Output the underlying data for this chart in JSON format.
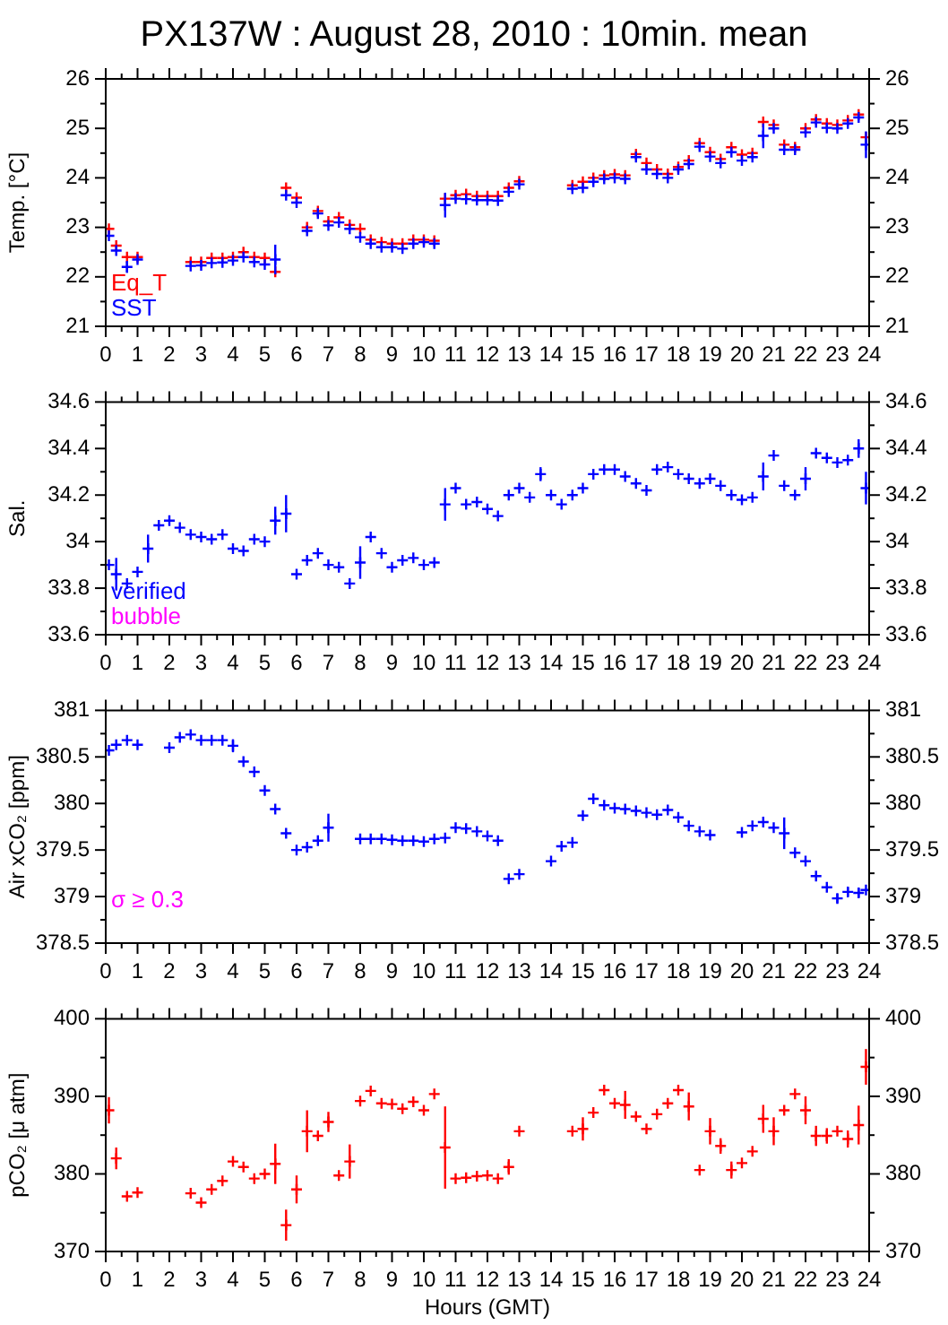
{
  "chart_data": [
    {
      "type": "scatter",
      "title": "PX137W : August 28, 2010 : 10min. mean",
      "ylabel": "Temp. [°C]",
      "marker": "cross",
      "legend": "bottom left",
      "x": [
        0.1,
        0.33,
        0.67,
        1,
        1.33,
        1.67,
        2,
        2.33,
        2.67,
        3,
        3.33,
        3.67,
        4,
        4.33,
        4.67,
        5,
        5.33,
        5.67,
        6,
        6.33,
        6.67,
        7,
        7.33,
        7.67,
        8,
        8.33,
        8.67,
        9,
        9.33,
        9.67,
        10,
        10.33,
        10.67,
        11,
        11.33,
        11.67,
        12,
        12.33,
        12.67,
        13,
        13.33,
        13.67,
        14,
        14.33,
        14.67,
        15,
        15.33,
        15.67,
        16,
        16.33,
        16.67,
        17,
        17.33,
        17.67,
        18,
        18.33,
        18.67,
        19,
        19.33,
        19.67,
        20,
        20.33,
        20.67,
        21,
        21.33,
        21.67,
        22,
        22.33,
        22.67,
        23,
        23.33,
        23.67,
        23.9
      ],
      "series": [
        {
          "name": "Eq_T",
          "color": "#ff0000",
          "values": [
            22.97,
            22.63,
            22.4,
            22.4,
            null,
            null,
            null,
            null,
            22.3,
            22.3,
            22.38,
            22.38,
            22.4,
            22.5,
            22.4,
            22.38,
            22.1,
            23.8,
            23.6,
            23.0,
            23.33,
            23.12,
            23.2,
            23.05,
            22.97,
            22.75,
            22.7,
            22.67,
            22.67,
            22.75,
            22.75,
            22.73,
            23.58,
            23.65,
            23.67,
            23.63,
            23.63,
            23.63,
            23.8,
            23.93,
            null,
            null,
            null,
            null,
            23.85,
            23.92,
            24.0,
            24.05,
            24.07,
            24.05,
            24.48,
            24.3,
            24.17,
            24.08,
            24.22,
            24.35,
            24.7,
            24.52,
            24.38,
            24.62,
            24.47,
            24.5,
            25.13,
            25.07,
            24.67,
            24.62,
            25.0,
            25.18,
            25.1,
            25.07,
            25.16,
            25.28,
            24.82
          ]
        },
        {
          "name": "SST",
          "color": "#0000ff",
          "values": [
            22.83,
            22.53,
            22.2,
            22.35,
            null,
            null,
            null,
            null,
            22.22,
            22.23,
            22.28,
            22.29,
            22.33,
            22.4,
            22.3,
            22.25,
            22.35,
            23.65,
            23.5,
            22.93,
            23.28,
            23.04,
            23.1,
            22.97,
            22.8,
            22.67,
            22.6,
            22.6,
            22.57,
            22.67,
            22.7,
            22.67,
            23.45,
            23.58,
            23.57,
            23.55,
            23.55,
            23.54,
            23.72,
            23.87,
            null,
            null,
            null,
            null,
            23.78,
            23.8,
            23.92,
            23.98,
            24.0,
            23.98,
            24.42,
            24.17,
            24.08,
            24.0,
            24.17,
            24.28,
            24.63,
            24.43,
            24.3,
            24.52,
            24.35,
            24.42,
            24.85,
            25.0,
            24.57,
            24.57,
            24.92,
            25.12,
            25.01,
            25.0,
            25.1,
            25.22,
            24.67
          ],
          "errors": [
            null,
            null,
            0.12,
            null,
            null,
            null,
            null,
            null,
            null,
            null,
            null,
            null,
            null,
            null,
            null,
            null,
            0.3,
            null,
            null,
            null,
            null,
            null,
            null,
            null,
            null,
            null,
            null,
            null,
            null,
            null,
            null,
            null,
            0.25,
            null,
            null,
            null,
            null,
            null,
            null,
            null,
            null,
            null,
            null,
            null,
            null,
            null,
            null,
            null,
            null,
            null,
            null,
            null,
            null,
            null,
            null,
            null,
            null,
            null,
            null,
            null,
            null,
            null,
            0.25,
            null,
            null,
            null,
            null,
            null,
            null,
            null,
            null,
            null,
            0.27
          ]
        }
      ],
      "xlim": [
        0,
        24
      ],
      "xticks": [
        0,
        {
          "value": 0.5,
          "label": null
        },
        1,
        {
          "value": 1.5,
          "label": null
        },
        2,
        {
          "value": 2.5,
          "label": null
        },
        3,
        {
          "value": 3.5,
          "label": null
        },
        4,
        {
          "value": 4.5,
          "label": null
        },
        5,
        {
          "value": 5.5,
          "label": null
        },
        6,
        {
          "value": 6.5,
          "label": null
        },
        7,
        {
          "value": 7.5,
          "label": null
        },
        8,
        {
          "value": 8.5,
          "label": null
        },
        9,
        {
          "value": 9.5,
          "label": null
        },
        10,
        {
          "value": 10.5,
          "label": null
        },
        11,
        {
          "value": 11.5,
          "label": null
        },
        12,
        {
          "value": 12.5,
          "label": null
        },
        13,
        {
          "value": 13.5,
          "label": null
        },
        14,
        {
          "value": 14.5,
          "label": null
        },
        15,
        {
          "value": 15.5,
          "label": null
        },
        16,
        {
          "value": 16.5,
          "label": null
        },
        17,
        {
          "value": 17.5,
          "label": null
        },
        18,
        {
          "value": 18.5,
          "label": null
        },
        19,
        {
          "value": 19.5,
          "label": null
        },
        20,
        {
          "value": 20.5,
          "label": null
        },
        21,
        {
          "value": 21.5,
          "label": null
        },
        22,
        {
          "value": 22.5,
          "label": null
        },
        23,
        {
          "value": 23.5,
          "label": null
        },
        24
      ],
      "ylim": [
        21,
        26
      ],
      "yticks": [
        21,
        {
          "value": 21.5,
          "label": null
        },
        22,
        {
          "value": 22.5,
          "label": null
        },
        23,
        {
          "value": 23.5,
          "label": null
        },
        24,
        {
          "value": 24.5,
          "label": null
        },
        25,
        {
          "value": 25.5,
          "label": null
        },
        26
      ],
      "y2lim": [
        21,
        26
      ],
      "y2ticks": [
        21,
        {
          "value": 21.5,
          "label": null
        },
        22,
        {
          "value": 22.5,
          "label": null
        },
        23,
        {
          "value": 23.5,
          "label": null
        },
        24,
        {
          "value": 24.5,
          "label": null
        },
        25,
        {
          "value": 25.5,
          "label": null
        },
        26
      ]
    },
    {
      "type": "scatter",
      "ylabel": "Sal.",
      "marker": "cross",
      "legend": "bottom left",
      "x": [
        0.1,
        0.33,
        0.67,
        1,
        1.33,
        1.67,
        2,
        2.33,
        2.67,
        3,
        3.33,
        3.67,
        4,
        4.33,
        4.67,
        5,
        5.33,
        5.67,
        6,
        6.33,
        6.67,
        7,
        7.33,
        7.67,
        8,
        8.33,
        8.67,
        9,
        9.33,
        9.67,
        10,
        10.33,
        10.67,
        11,
        11.33,
        11.67,
        12,
        12.33,
        12.67,
        13,
        13.33,
        13.67,
        14,
        14.33,
        14.67,
        15,
        15.33,
        15.67,
        16,
        16.33,
        16.67,
        17,
        17.33,
        17.67,
        18,
        18.33,
        18.67,
        19,
        19.33,
        19.67,
        20,
        20.33,
        20.67,
        21,
        21.33,
        21.67,
        22,
        22.33,
        22.67,
        23,
        23.33,
        23.67,
        23.9
      ],
      "series": [
        {
          "name": "verified",
          "color": "#0000ff",
          "values": [
            33.9,
            33.86,
            33.82,
            33.87,
            33.97,
            34.07,
            34.09,
            34.06,
            34.03,
            34.02,
            34.01,
            34.03,
            33.97,
            33.96,
            34.01,
            34.0,
            34.09,
            34.12,
            33.86,
            33.92,
            33.95,
            33.9,
            33.89,
            33.82,
            33.91,
            34.02,
            33.95,
            33.89,
            33.92,
            33.93,
            33.9,
            33.91,
            34.16,
            34.23,
            34.16,
            34.17,
            34.14,
            34.11,
            34.2,
            34.23,
            34.19,
            34.29,
            34.2,
            34.16,
            34.2,
            34.23,
            34.29,
            34.31,
            34.31,
            34.28,
            34.25,
            34.22,
            34.31,
            34.32,
            34.29,
            34.27,
            34.25,
            34.27,
            34.24,
            34.2,
            34.18,
            34.19,
            34.28,
            34.37,
            34.24,
            34.2,
            34.27,
            34.38,
            34.36,
            34.34,
            34.35,
            34.4,
            34.23
          ],
          "errors": [
            null,
            0.07,
            null,
            null,
            0.06,
            null,
            null,
            null,
            null,
            null,
            null,
            null,
            null,
            null,
            null,
            null,
            0.06,
            0.08,
            null,
            null,
            null,
            null,
            null,
            null,
            0.07,
            null,
            null,
            null,
            null,
            null,
            null,
            null,
            0.07,
            null,
            null,
            null,
            null,
            null,
            null,
            null,
            null,
            0.03,
            null,
            null,
            null,
            null,
            null,
            null,
            null,
            null,
            null,
            null,
            null,
            null,
            null,
            null,
            null,
            null,
            null,
            null,
            null,
            null,
            0.06,
            null,
            null,
            null,
            0.05,
            null,
            null,
            null,
            null,
            0.04,
            0.07
          ]
        },
        {
          "name": "bubble",
          "color": "#ff00ff",
          "values": [
            null,
            null,
            null,
            null,
            null,
            null,
            null,
            null,
            null,
            null,
            null,
            null,
            null,
            null,
            null,
            null,
            null,
            null,
            null,
            null,
            null,
            null,
            null,
            null,
            null,
            null,
            null,
            null,
            null,
            null,
            null,
            null,
            null,
            null,
            null,
            null,
            null,
            null,
            null,
            null,
            null,
            null,
            null,
            null,
            null,
            null,
            null,
            null,
            null,
            null,
            null,
            null,
            null,
            null,
            null,
            null,
            null,
            null,
            null,
            null,
            null,
            null,
            null,
            null,
            null,
            null,
            null,
            null,
            null,
            null,
            null,
            null,
            null
          ]
        }
      ],
      "xlim": [
        0,
        24
      ],
      "xticks": [
        0,
        {
          "value": 0.5,
          "label": null
        },
        1,
        {
          "value": 1.5,
          "label": null
        },
        2,
        {
          "value": 2.5,
          "label": null
        },
        3,
        {
          "value": 3.5,
          "label": null
        },
        4,
        {
          "value": 4.5,
          "label": null
        },
        5,
        {
          "value": 5.5,
          "label": null
        },
        6,
        {
          "value": 6.5,
          "label": null
        },
        7,
        {
          "value": 7.5,
          "label": null
        },
        8,
        {
          "value": 8.5,
          "label": null
        },
        9,
        {
          "value": 9.5,
          "label": null
        },
        10,
        {
          "value": 10.5,
          "label": null
        },
        11,
        {
          "value": 11.5,
          "label": null
        },
        12,
        {
          "value": 12.5,
          "label": null
        },
        13,
        {
          "value": 13.5,
          "label": null
        },
        14,
        {
          "value": 14.5,
          "label": null
        },
        15,
        {
          "value": 15.5,
          "label": null
        },
        16,
        {
          "value": 16.5,
          "label": null
        },
        17,
        {
          "value": 17.5,
          "label": null
        },
        18,
        {
          "value": 18.5,
          "label": null
        },
        19,
        {
          "value": 19.5,
          "label": null
        },
        20,
        {
          "value": 20.5,
          "label": null
        },
        21,
        {
          "value": 21.5,
          "label": null
        },
        22,
        {
          "value": 22.5,
          "label": null
        },
        23,
        {
          "value": 23.5,
          "label": null
        },
        24
      ],
      "ylim": [
        33.6,
        34.6
      ],
      "yticks": [
        33.6,
        {
          "value": 33.7,
          "label": null
        },
        33.8,
        {
          "value": 33.9,
          "label": null
        },
        34,
        {
          "value": 34.1,
          "label": null
        },
        34.2,
        {
          "value": 34.3,
          "label": null
        },
        34.4,
        {
          "value": 34.5,
          "label": null
        },
        34.6
      ],
      "y2lim": [
        33.6,
        34.6
      ],
      "y2ticks": [
        33.6,
        {
          "value": 33.7,
          "label": null
        },
        33.8,
        {
          "value": 33.9,
          "label": null
        },
        34,
        {
          "value": 34.1,
          "label": null
        },
        34.2,
        {
          "value": 34.3,
          "label": null
        },
        34.4,
        {
          "value": 34.5,
          "label": null
        },
        34.6
      ]
    },
    {
      "type": "scatter",
      "ylabel": "Air xCO₂ [ppm]",
      "marker": "cross",
      "annotations": [
        "σ ≥ 0.3"
      ],
      "x": [
        0.1,
        0.33,
        0.67,
        1,
        1.33,
        1.67,
        2,
        2.33,
        2.67,
        3,
        3.33,
        3.67,
        4,
        4.33,
        4.67,
        5,
        5.33,
        5.67,
        6,
        6.33,
        6.67,
        7,
        7.33,
        7.67,
        8,
        8.33,
        8.67,
        9,
        9.33,
        9.67,
        10,
        10.33,
        10.67,
        11,
        11.33,
        11.67,
        12,
        12.33,
        12.67,
        13,
        13.33,
        13.67,
        14,
        14.33,
        14.67,
        15,
        15.33,
        15.67,
        16,
        16.33,
        16.67,
        17,
        17.33,
        17.67,
        18,
        18.33,
        18.67,
        19,
        19.33,
        19.67,
        20,
        20.33,
        20.67,
        21,
        21.33,
        21.67,
        22,
        22.33,
        22.67,
        23,
        23.33,
        23.67,
        23.9
      ],
      "series": [
        {
          "color": "#0000ff",
          "values": [
            380.57,
            380.63,
            380.68,
            380.63,
            null,
            null,
            380.6,
            380.71,
            380.74,
            380.68,
            380.68,
            380.68,
            380.62,
            380.45,
            380.34,
            380.14,
            379.94,
            379.68,
            379.5,
            379.53,
            379.6,
            379.74,
            null,
            null,
            379.62,
            379.62,
            379.62,
            379.61,
            379.6,
            379.6,
            379.59,
            379.62,
            379.63,
            379.74,
            379.73,
            379.7,
            379.65,
            379.6,
            379.19,
            379.24,
            null,
            null,
            379.38,
            379.54,
            379.58,
            379.87,
            380.05,
            379.98,
            379.95,
            379.94,
            379.92,
            379.9,
            379.88,
            379.93,
            379.85,
            379.76,
            379.7,
            379.66,
            null,
            null,
            379.69,
            379.76,
            379.8,
            379.74,
            379.68,
            379.47,
            379.38,
            379.22,
            379.1,
            378.98,
            379.05,
            379.04,
            379.07
          ],
          "errors": [
            null,
            null,
            null,
            null,
            null,
            null,
            null,
            null,
            null,
            null,
            null,
            null,
            0.07,
            null,
            null,
            null,
            null,
            null,
            null,
            null,
            null,
            0.15,
            null,
            null,
            null,
            null,
            null,
            null,
            null,
            null,
            null,
            null,
            null,
            null,
            null,
            null,
            null,
            null,
            null,
            null,
            null,
            null,
            null,
            null,
            null,
            null,
            null,
            null,
            null,
            null,
            null,
            null,
            null,
            null,
            null,
            null,
            null,
            null,
            null,
            null,
            null,
            null,
            null,
            null,
            0.17,
            null,
            null,
            null,
            null,
            0.05,
            0.05,
            0.05,
            null
          ]
        }
      ],
      "xlim": [
        0,
        24
      ],
      "xticks": [
        0,
        {
          "value": 0.5,
          "label": null
        },
        1,
        {
          "value": 1.5,
          "label": null
        },
        2,
        {
          "value": 2.5,
          "label": null
        },
        3,
        {
          "value": 3.5,
          "label": null
        },
        4,
        {
          "value": 4.5,
          "label": null
        },
        5,
        {
          "value": 5.5,
          "label": null
        },
        6,
        {
          "value": 6.5,
          "label": null
        },
        7,
        {
          "value": 7.5,
          "label": null
        },
        8,
        {
          "value": 8.5,
          "label": null
        },
        9,
        {
          "value": 9.5,
          "label": null
        },
        10,
        {
          "value": 10.5,
          "label": null
        },
        11,
        {
          "value": 11.5,
          "label": null
        },
        12,
        {
          "value": 12.5,
          "label": null
        },
        13,
        {
          "value": 13.5,
          "label": null
        },
        14,
        {
          "value": 14.5,
          "label": null
        },
        15,
        {
          "value": 15.5,
          "label": null
        },
        16,
        {
          "value": 16.5,
          "label": null
        },
        17,
        {
          "value": 17.5,
          "label": null
        },
        18,
        {
          "value": 18.5,
          "label": null
        },
        19,
        {
          "value": 19.5,
          "label": null
        },
        20,
        {
          "value": 20.5,
          "label": null
        },
        21,
        {
          "value": 21.5,
          "label": null
        },
        22,
        {
          "value": 22.5,
          "label": null
        },
        23,
        {
          "value": 23.5,
          "label": null
        },
        24
      ],
      "ylim": [
        378.5,
        381
      ],
      "yticks": [
        378.5,
        {
          "value": 378.75,
          "label": null
        },
        379,
        {
          "value": 379.25,
          "label": null
        },
        379.5,
        {
          "value": 379.75,
          "label": null
        },
        380,
        {
          "value": 380.25,
          "label": null
        },
        380.5,
        {
          "value": 380.75,
          "label": null
        },
        381
      ],
      "y2lim": [
        378.5,
        381
      ],
      "y2ticks": [
        378.5,
        {
          "value": 378.75,
          "label": null
        },
        379,
        {
          "value": 379.25,
          "label": null
        },
        379.5,
        {
          "value": 379.75,
          "label": null
        },
        380,
        {
          "value": 380.25,
          "label": null
        },
        380.5,
        {
          "value": 380.75,
          "label": null
        },
        381
      ]
    },
    {
      "type": "scatter",
      "ylabel": "pCO₂ [μ atm]",
      "xlabel": "Hours (GMT)",
      "marker": "cross",
      "x": [
        0.1,
        0.33,
        0.67,
        1,
        1.33,
        1.67,
        2,
        2.33,
        2.67,
        3,
        3.33,
        3.67,
        4,
        4.33,
        4.67,
        5,
        5.33,
        5.67,
        6,
        6.33,
        6.67,
        7,
        7.33,
        7.67,
        8,
        8.33,
        8.67,
        9,
        9.33,
        9.67,
        10,
        10.33,
        10.67,
        11,
        11.33,
        11.67,
        12,
        12.33,
        12.67,
        13,
        13.33,
        13.67,
        14,
        14.33,
        14.67,
        15,
        15.33,
        15.67,
        16,
        16.33,
        16.67,
        17,
        17.33,
        17.67,
        18,
        18.33,
        18.67,
        19,
        19.33,
        19.67,
        20,
        20.33,
        20.67,
        21,
        21.33,
        21.67,
        22,
        22.33,
        22.67,
        23,
        23.33,
        23.67,
        23.9
      ],
      "series": [
        {
          "color": "#ff0000",
          "values": [
            388.2,
            382.0,
            377.1,
            377.6,
            null,
            null,
            null,
            null,
            377.5,
            376.3,
            378.0,
            379.1,
            381.6,
            380.9,
            379.4,
            380.0,
            381.3,
            373.4,
            378.0,
            385.5,
            384.9,
            386.7,
            379.8,
            381.6,
            389.4,
            390.7,
            389.1,
            389.0,
            388.4,
            389.3,
            388.2,
            390.3,
            383.4,
            379.4,
            379.5,
            379.7,
            379.8,
            379.4,
            380.9,
            385.5,
            null,
            null,
            null,
            null,
            385.5,
            385.8,
            387.9,
            390.8,
            389.1,
            388.9,
            387.4,
            385.8,
            387.7,
            389.1,
            390.8,
            388.7,
            380.5,
            385.5,
            383.6,
            380.5,
            381.4,
            382.9,
            387.1,
            385.5,
            388.2,
            390.3,
            388.2,
            384.9,
            384.9,
            385.5,
            384.5,
            386.3,
            393.8
          ],
          "errors": [
            1.7,
            1.4,
            null,
            null,
            null,
            null,
            null,
            null,
            null,
            null,
            null,
            null,
            null,
            null,
            null,
            null,
            2.6,
            2.0,
            1.8,
            2.7,
            null,
            1.3,
            null,
            2.2,
            null,
            null,
            null,
            null,
            null,
            null,
            null,
            null,
            5.3,
            null,
            null,
            null,
            null,
            null,
            1.0,
            null,
            null,
            null,
            null,
            null,
            null,
            1.5,
            null,
            null,
            null,
            1.8,
            null,
            null,
            null,
            null,
            null,
            1.8,
            null,
            1.7,
            1.0,
            1.1,
            null,
            null,
            1.8,
            1.8,
            null,
            null,
            1.8,
            1.3,
            1.0,
            null,
            1.1,
            2.5,
            2.3
          ]
        }
      ],
      "xlim": [
        0,
        24
      ],
      "xticks": [
        0,
        {
          "value": 0.5,
          "label": null
        },
        1,
        {
          "value": 1.5,
          "label": null
        },
        2,
        {
          "value": 2.5,
          "label": null
        },
        3,
        {
          "value": 3.5,
          "label": null
        },
        4,
        {
          "value": 4.5,
          "label": null
        },
        5,
        {
          "value": 5.5,
          "label": null
        },
        6,
        {
          "value": 6.5,
          "label": null
        },
        7,
        {
          "value": 7.5,
          "label": null
        },
        8,
        {
          "value": 8.5,
          "label": null
        },
        9,
        {
          "value": 9.5,
          "label": null
        },
        10,
        {
          "value": 10.5,
          "label": null
        },
        11,
        {
          "value": 11.5,
          "label": null
        },
        12,
        {
          "value": 12.5,
          "label": null
        },
        13,
        {
          "value": 13.5,
          "label": null
        },
        14,
        {
          "value": 14.5,
          "label": null
        },
        15,
        {
          "value": 15.5,
          "label": null
        },
        16,
        {
          "value": 16.5,
          "label": null
        },
        17,
        {
          "value": 17.5,
          "label": null
        },
        18,
        {
          "value": 18.5,
          "label": null
        },
        19,
        {
          "value": 19.5,
          "label": null
        },
        20,
        {
          "value": 20.5,
          "label": null
        },
        21,
        {
          "value": 21.5,
          "label": null
        },
        22,
        {
          "value": 22.5,
          "label": null
        },
        23,
        {
          "value": 23.5,
          "label": null
        },
        24
      ],
      "ylim": [
        370,
        400
      ],
      "yticks": [
        370,
        {
          "value": 375,
          "label": null
        },
        380,
        {
          "value": 385,
          "label": null
        },
        390,
        {
          "value": 395,
          "label": null
        },
        400
      ],
      "y2lim": [
        370,
        400
      ],
      "y2ticks": [
        370,
        {
          "value": 375,
          "label": null
        },
        380,
        {
          "value": 385,
          "label": null
        },
        390,
        {
          "value": 395,
          "label": null
        },
        400
      ]
    }
  ]
}
